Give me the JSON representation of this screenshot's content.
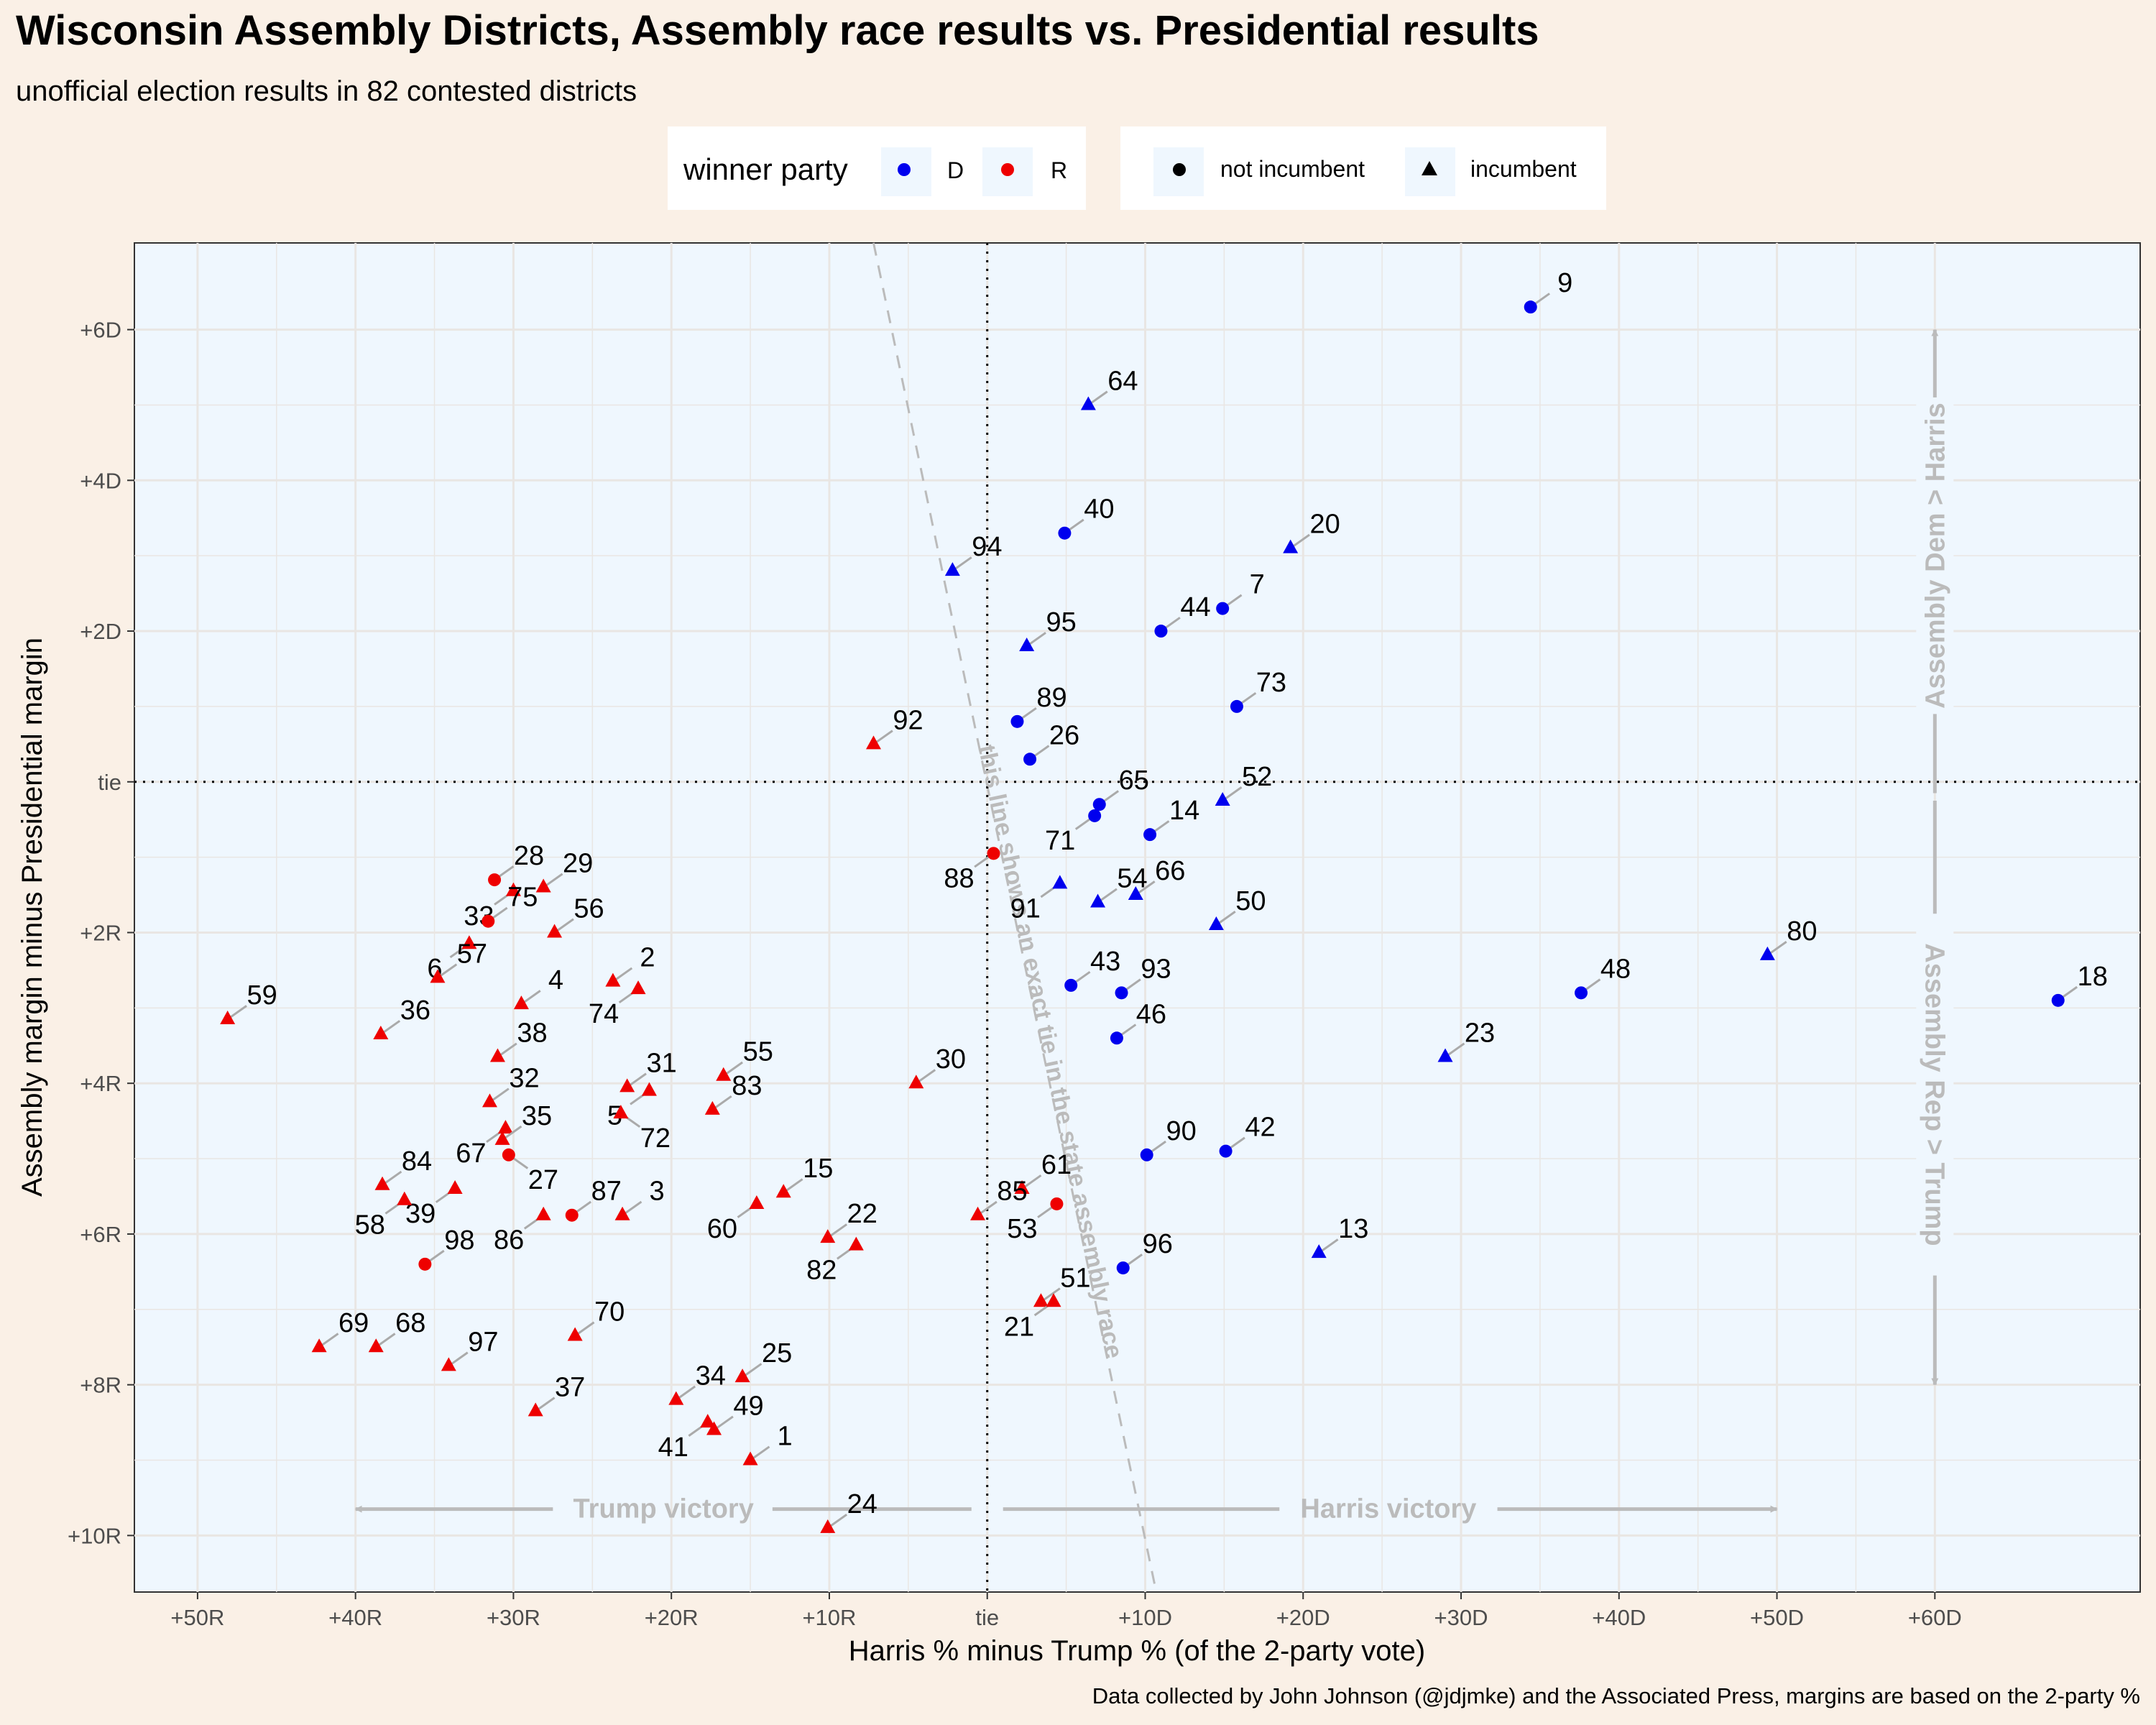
{
  "colors": {
    "background": "#faf0e6",
    "panel": "#eff7fe",
    "dem": "#0000ee",
    "rep": "#ee0000",
    "annotation": "#bbbbbb",
    "grid": "#e9e6e3"
  },
  "legend": {
    "party_title": "winner party",
    "party_items": [
      "D",
      "R"
    ],
    "incumbent_items": [
      "not incumbent",
      "incumbent"
    ]
  },
  "chart_data": {
    "type": "scatter",
    "title": "Wisconsin Assembly Districts, Assembly race results vs. Presidential results",
    "subtitle": "unofficial election results in 82 contested districts",
    "xlabel": "Harris % minus Trump % (of the 2-party vote)",
    "ylabel": "Assembly margin minus Presidential margin",
    "caption": "Data collected by John Johnson (@jdjmke) and the Associated Press, margins are based on the 2-party %",
    "xlim": [
      -54,
      73
    ],
    "ylim": [
      -10.75,
      7.15
    ],
    "x_ticks": [
      -50,
      -40,
      -30,
      -20,
      -10,
      0,
      10,
      20,
      30,
      40,
      50,
      60
    ],
    "x_tick_labels": [
      "+50R",
      "+40R",
      "+30R",
      "+20R",
      "+10R",
      "tie",
      "+10D",
      "+20D",
      "+30D",
      "+40D",
      "+50D",
      "+60D"
    ],
    "y_ticks": [
      6,
      4,
      2,
      0,
      -2,
      -4,
      -6,
      -8,
      -10
    ],
    "y_tick_labels": [
      "+6D",
      "+4D",
      "+2D",
      "tie",
      "+2R",
      "+4R",
      "+6R",
      "+8R",
      "+10R"
    ],
    "annotations": {
      "tie_line": "this line shows an exact tie in the state assembly race",
      "trump_victory": "Trump victory",
      "harris_victory": "Harris victory",
      "dem_greater": "Assembly Dem > Harris",
      "rep_greater": "Assembly Rep > Trump"
    },
    "points": [
      {
        "district": "9",
        "x": 34.4,
        "y": 6.3,
        "party": "D",
        "incumbent": false
      },
      {
        "district": "64",
        "x": 6.4,
        "y": 5.0,
        "party": "D",
        "incumbent": true
      },
      {
        "district": "40",
        "x": 4.9,
        "y": 3.3,
        "party": "D",
        "incumbent": false
      },
      {
        "district": "94",
        "x": -2.2,
        "y": 2.8,
        "party": "D",
        "incumbent": true
      },
      {
        "district": "20",
        "x": 19.2,
        "y": 3.1,
        "party": "D",
        "incumbent": true
      },
      {
        "district": "44",
        "x": 11.0,
        "y": 2.0,
        "party": "D",
        "incumbent": false
      },
      {
        "district": "7",
        "x": 14.9,
        "y": 2.3,
        "party": "D",
        "incumbent": false
      },
      {
        "district": "95",
        "x": 2.5,
        "y": 1.8,
        "party": "D",
        "incumbent": true
      },
      {
        "district": "73",
        "x": 15.8,
        "y": 1.0,
        "party": "D",
        "incumbent": false
      },
      {
        "district": "89",
        "x": 1.9,
        "y": 0.8,
        "party": "D",
        "incumbent": false
      },
      {
        "district": "92",
        "x": -7.2,
        "y": 0.5,
        "party": "R",
        "incumbent": true
      },
      {
        "district": "26",
        "x": 2.7,
        "y": 0.3,
        "party": "D",
        "incumbent": false
      },
      {
        "district": "65",
        "x": 7.1,
        "y": -0.3,
        "party": "D",
        "incumbent": false
      },
      {
        "district": "52",
        "x": 14.9,
        "y": -0.25,
        "party": "D",
        "incumbent": true
      },
      {
        "district": "71",
        "x": 6.8,
        "y": -0.45,
        "party": "D",
        "incumbent": false
      },
      {
        "district": "14",
        "x": 10.3,
        "y": -0.7,
        "party": "D",
        "incumbent": false
      },
      {
        "district": "88",
        "x": 0.4,
        "y": -0.95,
        "party": "R",
        "incumbent": false
      },
      {
        "district": "91",
        "x": 4.6,
        "y": -1.35,
        "party": "D",
        "incumbent": true
      },
      {
        "district": "66",
        "x": 9.4,
        "y": -1.5,
        "party": "D",
        "incumbent": true
      },
      {
        "district": "54",
        "x": 7.0,
        "y": -1.6,
        "party": "D",
        "incumbent": true
      },
      {
        "district": "50",
        "x": 14.5,
        "y": -1.9,
        "party": "D",
        "incumbent": true
      },
      {
        "district": "80",
        "x": 49.4,
        "y": -2.3,
        "party": "D",
        "incumbent": true
      },
      {
        "district": "43",
        "x": 5.3,
        "y": -2.7,
        "party": "D",
        "incumbent": false
      },
      {
        "district": "93",
        "x": 8.5,
        "y": -2.8,
        "party": "D",
        "incumbent": false
      },
      {
        "district": "48",
        "x": 37.6,
        "y": -2.8,
        "party": "D",
        "incumbent": false
      },
      {
        "district": "18",
        "x": 67.8,
        "y": -2.9,
        "party": "D",
        "incumbent": false
      },
      {
        "district": "46",
        "x": 8.2,
        "y": -3.4,
        "party": "D",
        "incumbent": false
      },
      {
        "district": "23",
        "x": 29.0,
        "y": -3.65,
        "party": "D",
        "incumbent": true
      },
      {
        "district": "90",
        "x": 10.1,
        "y": -4.95,
        "party": "D",
        "incumbent": false
      },
      {
        "district": "42",
        "x": 15.1,
        "y": -4.9,
        "party": "D",
        "incumbent": false
      },
      {
        "district": "13",
        "x": 21.0,
        "y": -6.25,
        "party": "D",
        "incumbent": true
      },
      {
        "district": "96",
        "x": 8.6,
        "y": -6.45,
        "party": "D",
        "incumbent": false
      },
      {
        "district": "28",
        "x": -31.2,
        "y": -1.3,
        "party": "R",
        "incumbent": false
      },
      {
        "district": "33",
        "x": -30.0,
        "y": -1.45,
        "party": "R",
        "incumbent": true
      },
      {
        "district": "29",
        "x": -28.1,
        "y": -1.4,
        "party": "R",
        "incumbent": true
      },
      {
        "district": "75",
        "x": -31.6,
        "y": -1.85,
        "party": "R",
        "incumbent": false
      },
      {
        "district": "6",
        "x": -32.8,
        "y": -2.15,
        "party": "R",
        "incumbent": true
      },
      {
        "district": "56",
        "x": -27.4,
        "y": -2.0,
        "party": "R",
        "incumbent": true
      },
      {
        "district": "57",
        "x": -34.8,
        "y": -2.6,
        "party": "R",
        "incumbent": true
      },
      {
        "district": "2",
        "x": -23.7,
        "y": -2.65,
        "party": "R",
        "incumbent": true
      },
      {
        "district": "74",
        "x": -22.1,
        "y": -2.75,
        "party": "R",
        "incumbent": true
      },
      {
        "district": "4",
        "x": -29.5,
        "y": -2.95,
        "party": "R",
        "incumbent": true
      },
      {
        "district": "59",
        "x": -48.1,
        "y": -3.15,
        "party": "R",
        "incumbent": true
      },
      {
        "district": "36",
        "x": -38.4,
        "y": -3.35,
        "party": "R",
        "incumbent": true
      },
      {
        "district": "38",
        "x": -31.0,
        "y": -3.65,
        "party": "R",
        "incumbent": true
      },
      {
        "district": "55",
        "x": -16.7,
        "y": -3.9,
        "party": "R",
        "incumbent": true
      },
      {
        "district": "31",
        "x": -22.8,
        "y": -4.05,
        "party": "R",
        "incumbent": true
      },
      {
        "district": "5",
        "x": -21.4,
        "y": -4.1,
        "party": "R",
        "incumbent": true
      },
      {
        "district": "30",
        "x": -4.5,
        "y": -4.0,
        "party": "R",
        "incumbent": true
      },
      {
        "district": "32",
        "x": -31.5,
        "y": -4.25,
        "party": "R",
        "incumbent": true
      },
      {
        "district": "83",
        "x": -17.4,
        "y": -4.35,
        "party": "R",
        "incumbent": true
      },
      {
        "district": "72",
        "x": -23.2,
        "y": -4.4,
        "party": "R",
        "incumbent": true
      },
      {
        "district": "67",
        "x": -30.5,
        "y": -4.6,
        "party": "R",
        "incumbent": true
      },
      {
        "district": "35",
        "x": -30.7,
        "y": -4.75,
        "party": "R",
        "incumbent": true
      },
      {
        "district": "27",
        "x": -30.3,
        "y": -4.95,
        "party": "R",
        "incumbent": false
      },
      {
        "district": "84",
        "x": -38.3,
        "y": -5.35,
        "party": "R",
        "incumbent": true
      },
      {
        "district": "39",
        "x": -33.7,
        "y": -5.4,
        "party": "R",
        "incumbent": true
      },
      {
        "district": "15",
        "x": -12.9,
        "y": -5.45,
        "party": "R",
        "incumbent": true
      },
      {
        "district": "61",
        "x": 2.2,
        "y": -5.4,
        "party": "R",
        "incumbent": true
      },
      {
        "district": "58",
        "x": -36.9,
        "y": -5.55,
        "party": "R",
        "incumbent": true
      },
      {
        "district": "60",
        "x": -14.6,
        "y": -5.6,
        "party": "R",
        "incumbent": true
      },
      {
        "district": "53",
        "x": 4.4,
        "y": -5.6,
        "party": "R",
        "incumbent": false
      },
      {
        "district": "86",
        "x": -28.1,
        "y": -5.75,
        "party": "R",
        "incumbent": true
      },
      {
        "district": "87",
        "x": -26.3,
        "y": -5.75,
        "party": "R",
        "incumbent": false
      },
      {
        "district": "3",
        "x": -23.1,
        "y": -5.75,
        "party": "R",
        "incumbent": true
      },
      {
        "district": "85",
        "x": -0.6,
        "y": -5.75,
        "party": "R",
        "incumbent": true
      },
      {
        "district": "22",
        "x": -10.1,
        "y": -6.05,
        "party": "R",
        "incumbent": true
      },
      {
        "district": "82",
        "x": -8.3,
        "y": -6.15,
        "party": "R",
        "incumbent": true
      },
      {
        "district": "98",
        "x": -35.6,
        "y": -6.4,
        "party": "R",
        "incumbent": false
      },
      {
        "district": "51",
        "x": 3.4,
        "y": -6.9,
        "party": "R",
        "incumbent": true
      },
      {
        "district": "21",
        "x": 4.2,
        "y": -6.9,
        "party": "R",
        "incumbent": true
      },
      {
        "district": "70",
        "x": -26.1,
        "y": -7.35,
        "party": "R",
        "incumbent": true
      },
      {
        "district": "69",
        "x": -42.3,
        "y": -7.5,
        "party": "R",
        "incumbent": true
      },
      {
        "district": "68",
        "x": -38.7,
        "y": -7.5,
        "party": "R",
        "incumbent": true
      },
      {
        "district": "97",
        "x": -34.1,
        "y": -7.75,
        "party": "R",
        "incumbent": true
      },
      {
        "district": "25",
        "x": -15.5,
        "y": -7.9,
        "party": "R",
        "incumbent": true
      },
      {
        "district": "34",
        "x": -19.7,
        "y": -8.2,
        "party": "R",
        "incumbent": true
      },
      {
        "district": "37",
        "x": -28.6,
        "y": -8.35,
        "party": "R",
        "incumbent": true
      },
      {
        "district": "41",
        "x": -17.7,
        "y": -8.5,
        "party": "R",
        "incumbent": true
      },
      {
        "district": "49",
        "x": -17.3,
        "y": -8.6,
        "party": "R",
        "incumbent": true
      },
      {
        "district": "1",
        "x": -15.0,
        "y": -9.0,
        "party": "R",
        "incumbent": true
      },
      {
        "district": "24",
        "x": -10.1,
        "y": -9.9,
        "party": "R",
        "incumbent": true
      }
    ]
  }
}
